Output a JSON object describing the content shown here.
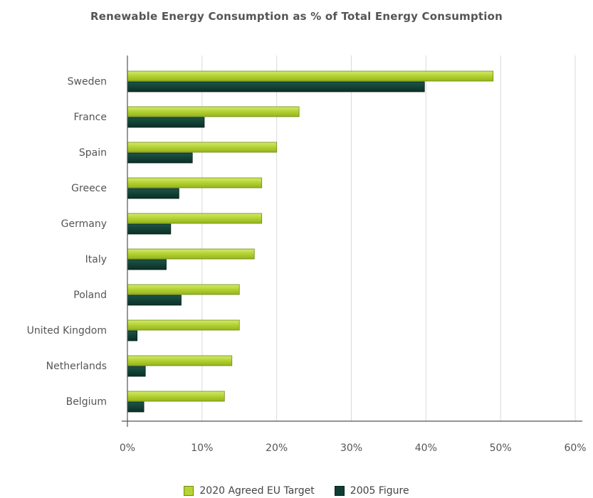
{
  "chart_data": {
    "type": "bar",
    "orientation": "horizontal",
    "title": "Renewable Energy Consumption as % of Total Energy Consumption",
    "xlabel": "",
    "ylabel": "",
    "categories": [
      "Sweden",
      "France",
      "Spain",
      "Greece",
      "Germany",
      "Italy",
      "Poland",
      "United Kingdom",
      "Netherlands",
      "Belgium"
    ],
    "series": [
      {
        "name": "2020 Agreed EU Target",
        "color": "#b5d334",
        "values": [
          49,
          23,
          20,
          18,
          18,
          17,
          15,
          15,
          14,
          13
        ]
      },
      {
        "name": "2005 Figure",
        "color": "#0f3d33",
        "values": [
          39.8,
          10.3,
          8.7,
          6.9,
          5.8,
          5.2,
          7.2,
          1.3,
          2.4,
          2.2
        ]
      }
    ],
    "xlim": [
      0,
      60
    ],
    "xticks": [
      0,
      10,
      20,
      30,
      40,
      50,
      60
    ],
    "tick_format": "{v}%",
    "grid": "vertical",
    "legend_position": "bottom-center"
  }
}
